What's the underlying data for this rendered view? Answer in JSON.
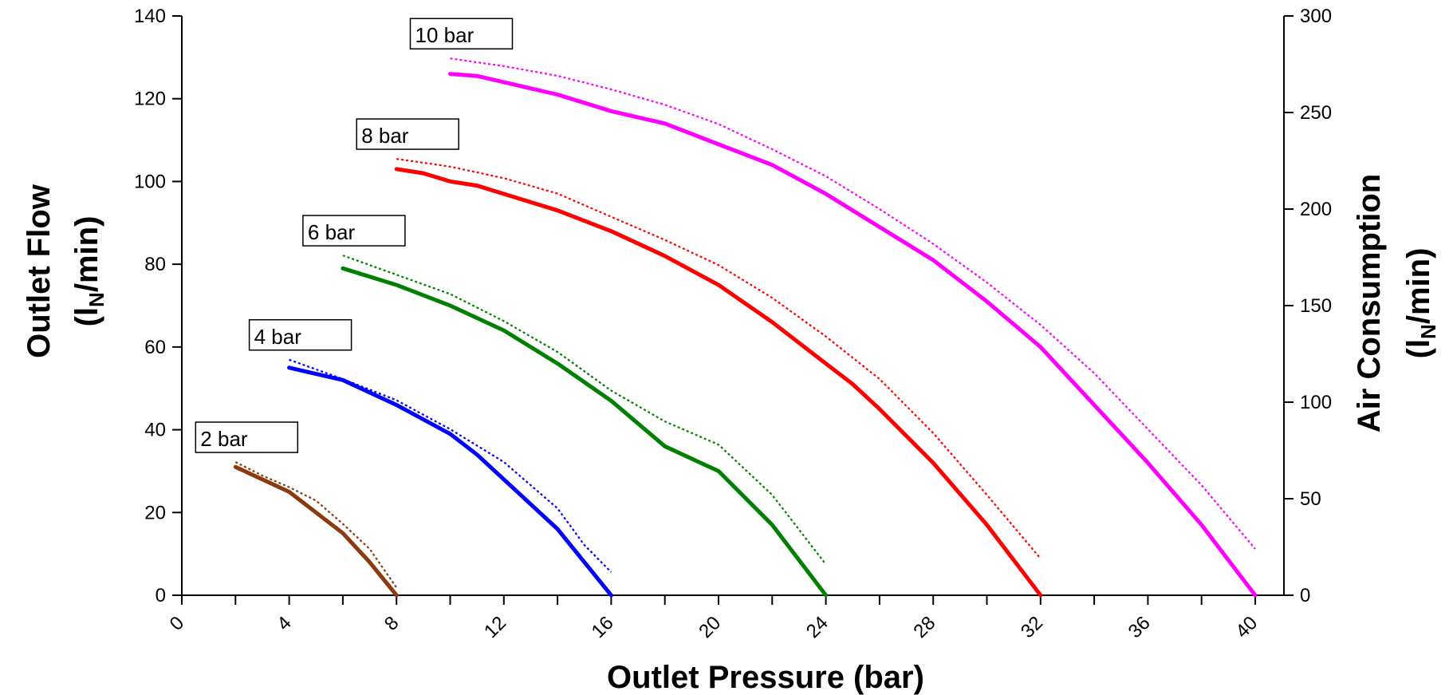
{
  "chart_data": {
    "type": "line",
    "xlabel": "Outlet Pressure (bar)",
    "ylabel_left": {
      "main": "Outlet Flow",
      "unit_prefix": "(l",
      "unit_sub": "N",
      "unit_suffix": "/min)"
    },
    "ylabel_right": {
      "main": "Air Consumption",
      "unit_prefix": "(l",
      "unit_sub": "N",
      "unit_suffix": "/min)"
    },
    "xlim": [
      0,
      41
    ],
    "ylim_left": [
      0,
      140
    ],
    "ylim_right": [
      0,
      300
    ],
    "x_ticks": [
      0,
      4,
      8,
      12,
      16,
      20,
      24,
      28,
      32,
      36,
      40
    ],
    "y_ticks_left": [
      0,
      20,
      40,
      60,
      80,
      100,
      120,
      140
    ],
    "y_ticks_right": [
      0,
      50,
      100,
      150,
      200,
      250,
      300
    ],
    "grid": false,
    "series": [
      {
        "name": "2 bar",
        "color": "#8B3A0E",
        "outlet_flow": [
          [
            2,
            31
          ],
          [
            4,
            25
          ],
          [
            6,
            15
          ],
          [
            7,
            8
          ],
          [
            8,
            0
          ]
        ],
        "air_consumption": [
          [
            2,
            69
          ],
          [
            3,
            62
          ],
          [
            4,
            56
          ],
          [
            5,
            49
          ],
          [
            6,
            37
          ],
          [
            7,
            24
          ],
          [
            8,
            4
          ]
        ]
      },
      {
        "name": "4 bar",
        "color": "#0000FF",
        "outlet_flow": [
          [
            4,
            55
          ],
          [
            6,
            52
          ],
          [
            8,
            46
          ],
          [
            10,
            39
          ],
          [
            11,
            34
          ],
          [
            12,
            28
          ],
          [
            14,
            16
          ],
          [
            16,
            0
          ]
        ],
        "air_consumption": [
          [
            4,
            122
          ],
          [
            6,
            112
          ],
          [
            8,
            101
          ],
          [
            10,
            86
          ],
          [
            12,
            69
          ],
          [
            14,
            45
          ],
          [
            15,
            26
          ],
          [
            16,
            12
          ]
        ]
      },
      {
        "name": "6 bar",
        "color": "#008000",
        "outlet_flow": [
          [
            6,
            79
          ],
          [
            8,
            75
          ],
          [
            10,
            70
          ],
          [
            12,
            64
          ],
          [
            14,
            56
          ],
          [
            16,
            47
          ],
          [
            18,
            36
          ],
          [
            20,
            30
          ],
          [
            22,
            17
          ],
          [
            24,
            0
          ]
        ],
        "air_consumption": [
          [
            6,
            176
          ],
          [
            8,
            166
          ],
          [
            10,
            156
          ],
          [
            12,
            142
          ],
          [
            14,
            126
          ],
          [
            16,
            106
          ],
          [
            18,
            90
          ],
          [
            20,
            78
          ],
          [
            22,
            52
          ],
          [
            24,
            16
          ]
        ]
      },
      {
        "name": "8 bar",
        "color": "#FF0000",
        "outlet_flow": [
          [
            8,
            103
          ],
          [
            9,
            102
          ],
          [
            10,
            100
          ],
          [
            11,
            99
          ],
          [
            12,
            97
          ],
          [
            14,
            93
          ],
          [
            16,
            88
          ],
          [
            17,
            85
          ],
          [
            18,
            82
          ],
          [
            20,
            75
          ],
          [
            22,
            66
          ],
          [
            23,
            61
          ],
          [
            24,
            56
          ],
          [
            25,
            51
          ],
          [
            26,
            45
          ],
          [
            28,
            32
          ],
          [
            30,
            17
          ],
          [
            32,
            0
          ]
        ],
        "air_consumption": [
          [
            8,
            226
          ],
          [
            10,
            222
          ],
          [
            12,
            216
          ],
          [
            14,
            208
          ],
          [
            16,
            196
          ],
          [
            18,
            184
          ],
          [
            20,
            171
          ],
          [
            22,
            154
          ],
          [
            24,
            134
          ],
          [
            26,
            112
          ],
          [
            28,
            84
          ],
          [
            30,
            52
          ],
          [
            32,
            19
          ]
        ]
      },
      {
        "name": "10 bar",
        "color": "#FF00FF",
        "outlet_flow": [
          [
            10,
            126
          ],
          [
            11,
            125.5
          ],
          [
            12,
            124
          ],
          [
            13,
            122.5
          ],
          [
            14,
            121
          ],
          [
            16,
            117
          ],
          [
            18,
            114
          ],
          [
            20,
            109
          ],
          [
            22,
            104
          ],
          [
            24,
            97
          ],
          [
            26,
            89
          ],
          [
            28,
            81
          ],
          [
            30,
            71
          ],
          [
            32,
            60
          ],
          [
            34,
            46
          ],
          [
            36,
            32
          ],
          [
            38,
            17
          ],
          [
            40,
            0
          ]
        ],
        "air_consumption": [
          [
            10,
            278
          ],
          [
            12,
            274
          ],
          [
            14,
            269
          ],
          [
            16,
            262
          ],
          [
            18,
            254
          ],
          [
            20,
            244
          ],
          [
            22,
            231
          ],
          [
            24,
            217
          ],
          [
            26,
            200
          ],
          [
            28,
            182
          ],
          [
            30,
            162
          ],
          [
            32,
            140
          ],
          [
            34,
            115
          ],
          [
            36,
            86
          ],
          [
            38,
            57
          ],
          [
            40,
            24
          ]
        ]
      }
    ]
  }
}
